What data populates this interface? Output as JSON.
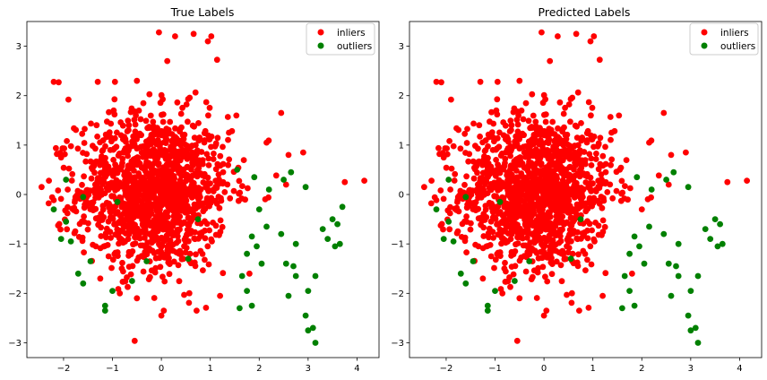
{
  "chart_data": [
    {
      "type": "scatter",
      "title": "True Labels",
      "xlabel": "",
      "ylabel": "",
      "xlim": [
        -2.75,
        4.45
      ],
      "ylim": [
        -3.3,
        3.5
      ],
      "x_ticks": [
        -2,
        -1,
        0,
        1,
        2,
        3,
        4
      ],
      "y_ticks": [
        -3,
        -2,
        -1,
        0,
        1,
        2,
        3
      ],
      "grid": false,
      "legend_position": "top-right",
      "series": [
        {
          "name": "inliers",
          "color": "#ff0000",
          "points_note": "dense gaussian cloud of ~1900 points centered near (0, 0); representative sample below",
          "points": [
            [
              -2.2,
              2.28
            ],
            [
              -2.1,
              2.27
            ],
            [
              -1.9,
              1.92
            ],
            [
              -1.3,
              2.28
            ],
            [
              -0.95,
              2.28
            ],
            [
              -0.5,
              2.3
            ],
            [
              -0.05,
              3.28
            ],
            [
              0.28,
              3.2
            ],
            [
              0.66,
              3.25
            ],
            [
              1.02,
              3.2
            ],
            [
              0.95,
              3.1
            ],
            [
              0.12,
              2.7
            ],
            [
              -2.45,
              0.15
            ],
            [
              -2.3,
              0.28
            ],
            [
              -2.05,
              0.75
            ],
            [
              2.15,
              1.05
            ],
            [
              2.6,
              0.8
            ],
            [
              2.9,
              0.85
            ],
            [
              2.45,
              1.65
            ],
            [
              3.75,
              0.25
            ],
            [
              4.15,
              0.28
            ],
            [
              2.55,
              0.2
            ],
            [
              -0.5,
              -2.1
            ],
            [
              0.0,
              -2.45
            ],
            [
              0.05,
              -2.35
            ],
            [
              0.72,
              -2.35
            ],
            [
              1.2,
              -2.05
            ],
            [
              1.8,
              -1.6
            ],
            [
              -1.25,
              -1.7
            ],
            [
              -0.85,
              -2.0
            ]
          ]
        },
        {
          "name": "outliers",
          "color": "#008000",
          "points": [
            [
              -1.15,
              -2.25
            ],
            [
              -1.15,
              -2.35
            ],
            [
              -1.0,
              -1.95
            ],
            [
              -1.6,
              -1.8
            ],
            [
              -1.7,
              -1.6
            ],
            [
              -1.45,
              -1.35
            ],
            [
              -1.85,
              -0.95
            ],
            [
              -2.05,
              -0.9
            ],
            [
              -1.95,
              -0.55
            ],
            [
              -2.2,
              -0.3
            ],
            [
              -1.6,
              -0.05
            ],
            [
              -1.95,
              0.3
            ],
            [
              -0.6,
              -1.75
            ],
            [
              -0.3,
              -1.35
            ],
            [
              0.55,
              -1.3
            ],
            [
              -0.9,
              -0.15
            ],
            [
              0.75,
              -0.5
            ],
            [
              1.55,
              0.5
            ],
            [
              1.9,
              0.35
            ],
            [
              2.2,
              0.1
            ],
            [
              2.5,
              0.3
            ],
            [
              2.65,
              0.45
            ],
            [
              2.95,
              0.15
            ],
            [
              2.0,
              -0.3
            ],
            [
              2.15,
              -0.65
            ],
            [
              1.85,
              -0.85
            ],
            [
              1.95,
              -1.05
            ],
            [
              1.75,
              -1.2
            ],
            [
              2.05,
              -1.4
            ],
            [
              2.45,
              -0.8
            ],
            [
              2.75,
              -1.0
            ],
            [
              2.55,
              -1.4
            ],
            [
              2.7,
              -1.45
            ],
            [
              2.75,
              -1.65
            ],
            [
              2.6,
              -2.05
            ],
            [
              1.65,
              -1.65
            ],
            [
              1.75,
              -1.95
            ],
            [
              1.85,
              -2.25
            ],
            [
              1.6,
              -2.3
            ],
            [
              3.15,
              -1.65
            ],
            [
              3.0,
              -1.95
            ],
            [
              2.95,
              -2.45
            ],
            [
              3.0,
              -2.75
            ],
            [
              3.1,
              -2.7
            ],
            [
              3.15,
              -3.0
            ],
            [
              3.3,
              -0.7
            ],
            [
              3.4,
              -0.9
            ],
            [
              3.5,
              -0.5
            ],
            [
              3.6,
              -0.6
            ],
            [
              3.65,
              -1.0
            ],
            [
              3.55,
              -1.05
            ],
            [
              3.7,
              -0.25
            ]
          ]
        }
      ]
    },
    {
      "type": "scatter",
      "title": "Predicted Labels",
      "xlabel": "",
      "ylabel": "",
      "xlim": [
        -2.75,
        4.45
      ],
      "ylim": [
        -3.3,
        3.5
      ],
      "x_ticks": [
        -2,
        -1,
        0,
        1,
        2,
        3,
        4
      ],
      "y_ticks": [
        -3,
        -2,
        -1,
        0,
        1,
        2,
        3
      ],
      "grid": false,
      "legend_position": "top-right",
      "series": [
        {
          "name": "inliers",
          "color": "#ff0000",
          "points_note": "same point cloud as left panel; a few former outliers near the edges now predicted as inliers",
          "points": [
            [
              -2.2,
              2.28
            ],
            [
              -2.1,
              2.27
            ],
            [
              -1.9,
              1.92
            ],
            [
              -1.3,
              2.28
            ],
            [
              -0.95,
              2.28
            ],
            [
              -0.5,
              2.3
            ],
            [
              -0.05,
              3.28
            ],
            [
              0.28,
              3.2
            ],
            [
              0.66,
              3.25
            ],
            [
              1.02,
              3.2
            ],
            [
              0.95,
              3.1
            ],
            [
              0.12,
              2.7
            ],
            [
              -2.45,
              0.15
            ],
            [
              -2.3,
              0.28
            ],
            [
              -2.05,
              0.75
            ],
            [
              2.15,
              1.05
            ],
            [
              2.6,
              0.8
            ],
            [
              2.9,
              0.85
            ],
            [
              2.45,
              1.65
            ],
            [
              3.75,
              0.25
            ],
            [
              4.15,
              0.28
            ],
            [
              2.55,
              0.2
            ],
            [
              -0.5,
              -2.1
            ],
            [
              0.0,
              -2.45
            ],
            [
              0.05,
              -2.35
            ],
            [
              0.72,
              -2.35
            ],
            [
              1.2,
              -2.05
            ],
            [
              -1.25,
              -1.7
            ],
            [
              -0.85,
              -2.0
            ],
            [
              1.55,
              0.5
            ],
            [
              2.0,
              -0.3
            ],
            [
              1.8,
              -1.6
            ]
          ]
        },
        {
          "name": "outliers",
          "color": "#008000",
          "points": [
            [
              -1.15,
              -2.25
            ],
            [
              -1.15,
              -2.35
            ],
            [
              -1.0,
              -1.95
            ],
            [
              -1.6,
              -1.8
            ],
            [
              -1.7,
              -1.6
            ],
            [
              -1.45,
              -1.35
            ],
            [
              -1.85,
              -0.95
            ],
            [
              -2.05,
              -0.9
            ],
            [
              -1.95,
              -0.55
            ],
            [
              -2.2,
              -0.3
            ],
            [
              -1.6,
              -0.05
            ],
            [
              -1.95,
              0.3
            ],
            [
              -0.6,
              -1.75
            ],
            [
              -0.3,
              -1.35
            ],
            [
              0.55,
              -1.3
            ],
            [
              -0.9,
              -0.15
            ],
            [
              0.75,
              -0.5
            ],
            [
              1.9,
              0.35
            ],
            [
              2.2,
              0.1
            ],
            [
              2.5,
              0.3
            ],
            [
              2.65,
              0.45
            ],
            [
              2.95,
              0.15
            ],
            [
              2.15,
              -0.65
            ],
            [
              1.85,
              -0.85
            ],
            [
              1.95,
              -1.05
            ],
            [
              1.75,
              -1.2
            ],
            [
              2.05,
              -1.4
            ],
            [
              2.45,
              -0.8
            ],
            [
              2.75,
              -1.0
            ],
            [
              2.55,
              -1.4
            ],
            [
              2.7,
              -1.45
            ],
            [
              2.75,
              -1.65
            ],
            [
              2.6,
              -2.05
            ],
            [
              1.65,
              -1.65
            ],
            [
              1.75,
              -1.95
            ],
            [
              1.85,
              -2.25
            ],
            [
              1.6,
              -2.3
            ],
            [
              3.15,
              -1.65
            ],
            [
              3.0,
              -1.95
            ],
            [
              2.95,
              -2.45
            ],
            [
              3.0,
              -2.75
            ],
            [
              3.1,
              -2.7
            ],
            [
              3.15,
              -3.0
            ],
            [
              3.3,
              -0.7
            ],
            [
              3.4,
              -0.9
            ],
            [
              3.5,
              -0.5
            ],
            [
              3.6,
              -0.6
            ],
            [
              3.65,
              -1.0
            ],
            [
              3.55,
              -1.05
            ]
          ]
        }
      ]
    }
  ]
}
